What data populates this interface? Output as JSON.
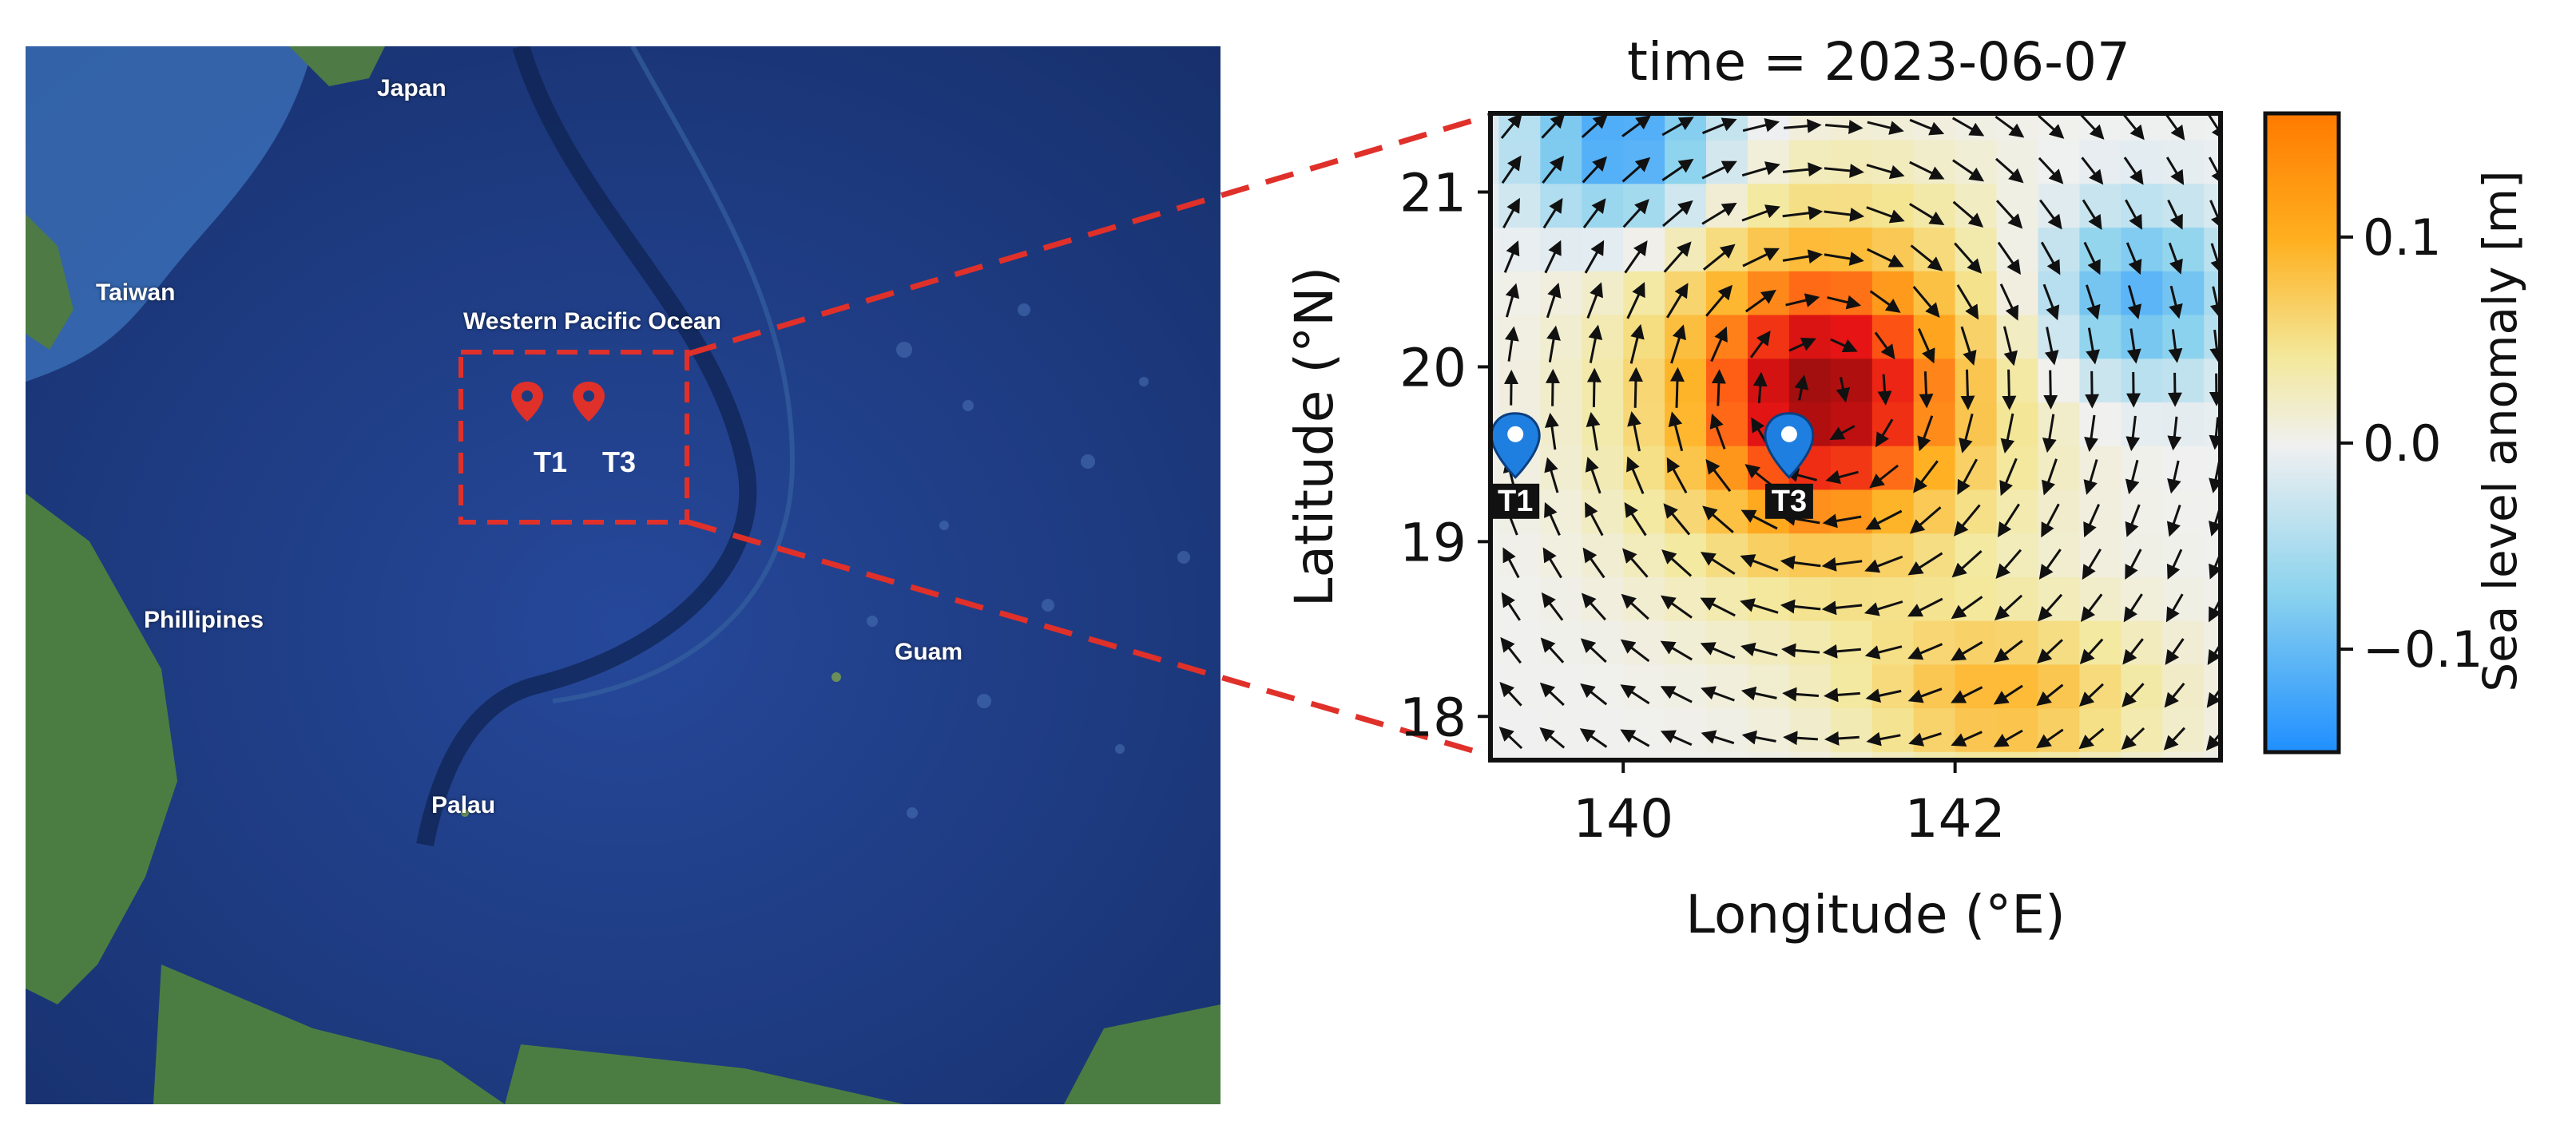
{
  "map": {
    "labels": {
      "japan": "Japan",
      "taiwan": "Taiwan",
      "western_pacific": "Western Pacific Ocean",
      "philippines": "Phillipines",
      "guam": "Guam",
      "palau": "Palau"
    },
    "sites": [
      "T1",
      "T3"
    ],
    "colors": {
      "ocean_deep": "#1c3a7c",
      "ocean_mid": "#2d56a3",
      "land": "#3f6b3a",
      "marker": "#e0302a",
      "box": "#e0302a"
    }
  },
  "chart_data": {
    "type": "heatmap",
    "title": "time = 2023-06-07",
    "xlabel": "Longitude (°E)",
    "ylabel": "Latitude (°N)",
    "xlim": [
      139.2,
      143.6
    ],
    "ylim": [
      17.75,
      21.45
    ],
    "xticks": [
      140,
      142
    ],
    "yticks": [
      18,
      19,
      20,
      21
    ],
    "colorbar": {
      "label": "Sea level anomaly [m]",
      "range": [
        -0.15,
        0.16
      ],
      "ticks": [
        {
          "value": 0.1,
          "label": "0.1"
        },
        {
          "value": 0.0,
          "label": "0.0"
        },
        {
          "value": -0.1,
          "label": "−0.1"
        }
      ]
    },
    "field": {
      "description_values": "sea level anomaly in metres on a regular 0.25° grid",
      "eddy_center_lon": 141.2,
      "eddy_center_lat": 19.85,
      "eddy_peak": 0.16,
      "cold_spots": [
        {
          "lon": 140.0,
          "lat": 21.3,
          "value": -0.13
        },
        {
          "lon": 143.1,
          "lat": 20.4,
          "value": -0.11
        }
      ]
    },
    "vectors": "anticyclonic (clockwise) surface currents around the eddy centre",
    "markers": [
      {
        "name": "T1",
        "lon": 139.35,
        "lat": 19.45
      },
      {
        "name": "T3",
        "lon": 141.0,
        "lat": 19.45
      }
    ]
  }
}
